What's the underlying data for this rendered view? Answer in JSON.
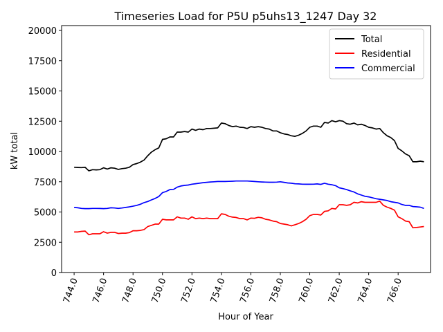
{
  "chart_data": {
    "type": "line",
    "title": "Timeseries Load for P5U p5uhs13_1247  Day 32",
    "xlabel": "Hour of Year",
    "ylabel": "kW total",
    "xlim": [
      743.15,
      768.2
    ],
    "ylim": [
      0,
      20400
    ],
    "xticks": [
      744,
      746,
      748,
      750,
      752,
      754,
      756,
      758,
      760,
      762,
      764,
      766
    ],
    "xtick_labels": [
      "744.0",
      "746.0",
      "748.0",
      "750.0",
      "752.0",
      "754.0",
      "756.0",
      "758.0",
      "760.0",
      "762.0",
      "764.0",
      "766.0"
    ],
    "yticks": [
      0,
      2500,
      5000,
      7500,
      10000,
      12500,
      15000,
      17500,
      20000
    ],
    "ytick_labels": [
      "0",
      "2500",
      "5000",
      "7500",
      "10000",
      "12500",
      "15000",
      "17500",
      "20000"
    ],
    "legend_position": "top-right",
    "x": [
      744.0,
      744.25,
      744.5,
      744.75,
      745.0,
      745.25,
      745.5,
      745.75,
      746.0,
      746.25,
      746.5,
      746.75,
      747.0,
      747.25,
      747.5,
      747.75,
      748.0,
      748.25,
      748.5,
      748.75,
      749.0,
      749.25,
      749.5,
      749.75,
      750.0,
      750.25,
      750.5,
      750.75,
      751.0,
      751.25,
      751.5,
      751.75,
      752.0,
      752.25,
      752.5,
      752.75,
      753.0,
      753.25,
      753.5,
      753.75,
      754.0,
      754.25,
      754.5,
      754.75,
      755.0,
      755.25,
      755.5,
      755.75,
      756.0,
      756.25,
      756.5,
      756.75,
      757.0,
      757.25,
      757.5,
      757.75,
      758.0,
      758.25,
      758.5,
      758.75,
      759.0,
      759.25,
      759.5,
      759.75,
      760.0,
      760.25,
      760.5,
      760.75,
      761.0,
      761.25,
      761.5,
      761.75,
      762.0,
      762.25,
      762.5,
      762.75,
      763.0,
      763.25,
      763.5,
      763.75,
      764.0,
      764.25,
      764.5,
      764.75,
      765.0,
      765.25,
      765.5,
      765.75,
      766.0,
      766.25,
      766.5,
      766.75,
      767.0,
      767.25,
      767.5,
      767.75
    ],
    "series": [
      {
        "name": "Total",
        "color": "#000000",
        "values": [
          8700,
          8680,
          8670,
          8690,
          8400,
          8500,
          8480,
          8500,
          8650,
          8550,
          8650,
          8620,
          8520,
          8580,
          8620,
          8700,
          8920,
          9000,
          9120,
          9300,
          9650,
          9950,
          10150,
          10300,
          11000,
          11050,
          11200,
          11200,
          11600,
          11600,
          11650,
          11600,
          11850,
          11750,
          11850,
          11800,
          11900,
          11900,
          11920,
          11950,
          12350,
          12300,
          12150,
          12050,
          12100,
          12000,
          11980,
          11900,
          12050,
          12000,
          12050,
          12000,
          11900,
          11850,
          11700,
          11700,
          11550,
          11450,
          11400,
          11300,
          11250,
          11350,
          11500,
          11700,
          12000,
          12100,
          12100,
          12000,
          12400,
          12350,
          12550,
          12450,
          12550,
          12500,
          12300,
          12250,
          12350,
          12200,
          12250,
          12150,
          12000,
          11950,
          11850,
          11900,
          11550,
          11300,
          11150,
          10900,
          10250,
          10050,
          9800,
          9650,
          9150,
          9150,
          9200,
          9150
        ]
      },
      {
        "name": "Residential",
        "color": "#ff0000",
        "values": [
          3350,
          3350,
          3400,
          3420,
          3120,
          3200,
          3200,
          3200,
          3370,
          3250,
          3320,
          3320,
          3220,
          3250,
          3250,
          3300,
          3450,
          3450,
          3480,
          3550,
          3800,
          3900,
          4000,
          4000,
          4400,
          4350,
          4350,
          4350,
          4600,
          4500,
          4500,
          4400,
          4600,
          4450,
          4500,
          4450,
          4500,
          4450,
          4450,
          4450,
          4850,
          4800,
          4650,
          4580,
          4550,
          4450,
          4450,
          4350,
          4500,
          4480,
          4560,
          4520,
          4400,
          4350,
          4250,
          4200,
          4050,
          4000,
          3950,
          3850,
          3950,
          4050,
          4200,
          4400,
          4700,
          4800,
          4800,
          4750,
          5050,
          5100,
          5300,
          5250,
          5600,
          5600,
          5550,
          5600,
          5800,
          5750,
          5850,
          5800,
          5800,
          5800,
          5800,
          5900,
          5550,
          5400,
          5300,
          5150,
          4600,
          4450,
          4250,
          4200,
          3700,
          3720,
          3760,
          3800
        ]
      },
      {
        "name": "Commercial",
        "color": "#0000ff",
        "values": [
          5380,
          5350,
          5300,
          5280,
          5280,
          5300,
          5300,
          5290,
          5280,
          5300,
          5350,
          5330,
          5300,
          5330,
          5380,
          5420,
          5480,
          5550,
          5640,
          5780,
          5870,
          6000,
          6120,
          6280,
          6600,
          6700,
          6850,
          6870,
          7050,
          7150,
          7200,
          7230,
          7300,
          7340,
          7380,
          7420,
          7450,
          7480,
          7500,
          7520,
          7520,
          7520,
          7530,
          7540,
          7560,
          7560,
          7560,
          7560,
          7540,
          7520,
          7500,
          7480,
          7470,
          7460,
          7460,
          7470,
          7500,
          7450,
          7400,
          7380,
          7330,
          7320,
          7300,
          7290,
          7290,
          7300,
          7320,
          7280,
          7380,
          7300,
          7250,
          7180,
          7000,
          6930,
          6850,
          6750,
          6650,
          6500,
          6400,
          6300,
          6250,
          6180,
          6100,
          6050,
          6000,
          5950,
          5850,
          5800,
          5750,
          5620,
          5550,
          5550,
          5450,
          5430,
          5400,
          5300
        ]
      }
    ]
  }
}
